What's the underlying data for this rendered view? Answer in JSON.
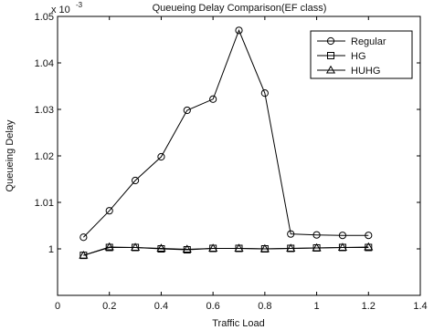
{
  "chart_data": {
    "type": "line",
    "title": "Queueing Delay Comparison(EF class)",
    "xlabel": "Traffic Load",
    "ylabel": "Queueing Delay",
    "y_multiplier_base": "x 10",
    "y_multiplier_exponent": "-3",
    "xlim": [
      0,
      1.4
    ],
    "ylim": [
      0.99,
      1.05
    ],
    "x_ticks": [
      0,
      0.2,
      0.4,
      0.6,
      0.8,
      1,
      1.2,
      1.4
    ],
    "x_tick_labels": [
      "0",
      "0.2",
      "0.4",
      "0.6",
      "0.8",
      "1",
      "1.2",
      "1.4"
    ],
    "y_ticks": [
      1,
      1.01,
      1.02,
      1.03,
      1.04,
      1.05
    ],
    "y_tick_labels": [
      "1",
      "1.01",
      "1.02",
      "1.03",
      "1.04",
      "1.05"
    ],
    "grid": false,
    "legend_position": "top-right",
    "x": [
      0.1,
      0.2,
      0.3,
      0.4,
      0.5,
      0.6,
      0.7,
      0.8,
      0.9,
      1.0,
      1.1,
      1.2
    ],
    "series": [
      {
        "name": "Regular",
        "marker": "circle",
        "values": [
          1.0025,
          1.0082,
          1.0147,
          1.0198,
          1.0298,
          1.0322,
          1.047,
          1.0335,
          1.0032,
          1.003,
          1.0029,
          1.0029
        ]
      },
      {
        "name": "HG",
        "marker": "square",
        "values": [
          0.9986,
          1.0003,
          1.0003,
          1.0,
          0.9998,
          1.0001,
          1.0001,
          1.0,
          1.0001,
          1.0002,
          1.0003,
          1.0003
        ]
      },
      {
        "name": "HUHG",
        "marker": "triangle",
        "values": [
          0.9986,
          1.0004,
          1.0003,
          1.0001,
          0.9999,
          1.0001,
          1.0001,
          1.0,
          1.0001,
          1.0002,
          1.0003,
          1.0004
        ]
      }
    ],
    "colors": {
      "line": "#000000",
      "background": "#ffffff"
    }
  }
}
